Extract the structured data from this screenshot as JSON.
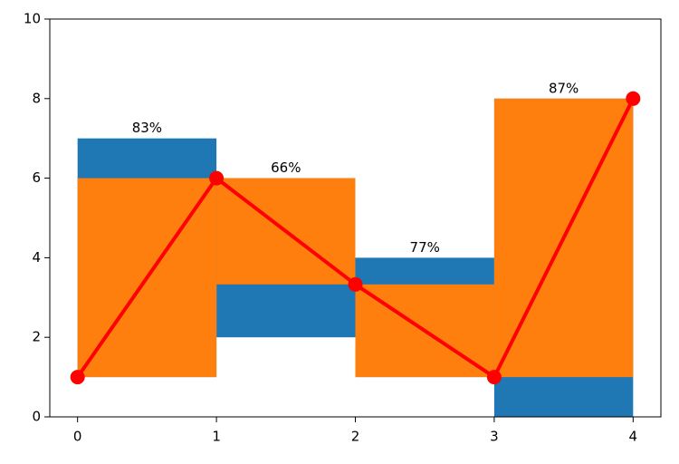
{
  "chart_data": {
    "type": "floating-bar-line",
    "xlim": [
      -0.2,
      4.2
    ],
    "xticks": [
      0,
      1,
      2,
      3,
      4
    ],
    "ylim": [
      0,
      10
    ],
    "yticks": [
      0,
      2,
      4,
      6,
      8,
      10
    ],
    "bar_x": [
      0,
      1,
      2,
      3
    ],
    "bar_width": 1,
    "series": [
      {
        "type": "bar",
        "color": "#1f77b4",
        "bottoms": [
          1,
          2,
          1,
          0
        ],
        "values": [
          7,
          6,
          4,
          8
        ]
      },
      {
        "type": "bar",
        "color": "#ff7f0e",
        "bottoms": [
          1,
          3.33,
          1,
          1
        ],
        "values": [
          6,
          6,
          3.33,
          8
        ]
      },
      {
        "type": "line",
        "color": "#ff0000",
        "x": [
          0,
          1,
          2,
          3,
          4
        ],
        "values": [
          1,
          6,
          3.33,
          1,
          8
        ]
      }
    ],
    "percent_labels": {
      "values": [
        83,
        66,
        77,
        87
      ],
      "value_labels": [
        "83%",
        "66%",
        "77%",
        "87%"
      ]
    }
  }
}
